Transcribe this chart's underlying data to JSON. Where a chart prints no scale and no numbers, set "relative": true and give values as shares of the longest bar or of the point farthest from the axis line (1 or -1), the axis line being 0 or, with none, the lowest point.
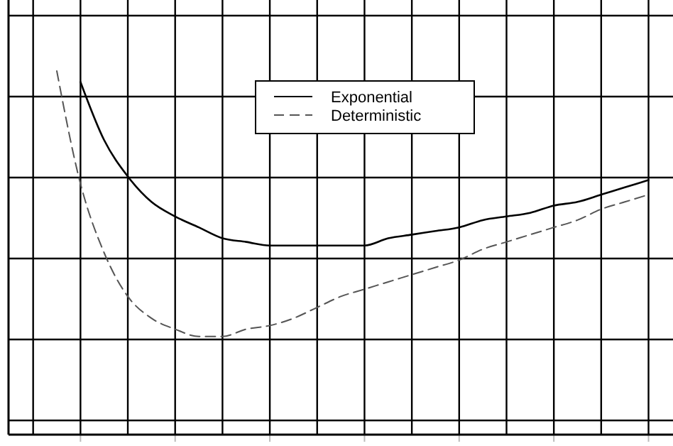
{
  "chart_data": {
    "type": "line",
    "relative": true,
    "grid": true,
    "legend": "top",
    "categories": [
      null,
      null,
      null,
      null,
      null,
      null,
      null,
      null,
      null,
      null,
      null,
      null,
      null,
      null,
      null,
      null,
      null,
      null,
      null,
      null,
      null,
      null,
      null,
      null,
      null,
      null,
      null,
      null
    ],
    "series": [
      {
        "name": "Exponential",
        "color": "#000000",
        "line_style": "solid",
        "values": [
          null,
          null,
          null,
          0.97,
          0.81,
          0.71,
          0.64,
          0.6,
          0.57,
          0.54,
          0.53,
          0.52,
          0.52,
          0.52,
          0.52,
          0.52,
          0.54,
          0.55,
          0.56,
          0.57,
          0.59,
          0.6,
          0.61,
          0.63,
          0.64,
          0.66,
          0.68,
          0.7
        ]
      },
      {
        "name": "Deterministic",
        "color": "#555555",
        "line_style": "dashed",
        "values": [
          null,
          null,
          1.0,
          0.69,
          0.5,
          0.38,
          0.32,
          0.29,
          0.27,
          0.27,
          0.29,
          0.3,
          0.32,
          0.35,
          0.38,
          0.4,
          0.42,
          0.44,
          0.46,
          0.48,
          0.51,
          0.53,
          0.55,
          0.57,
          0.59,
          0.62,
          0.64,
          0.66
        ]
      }
    ]
  }
}
